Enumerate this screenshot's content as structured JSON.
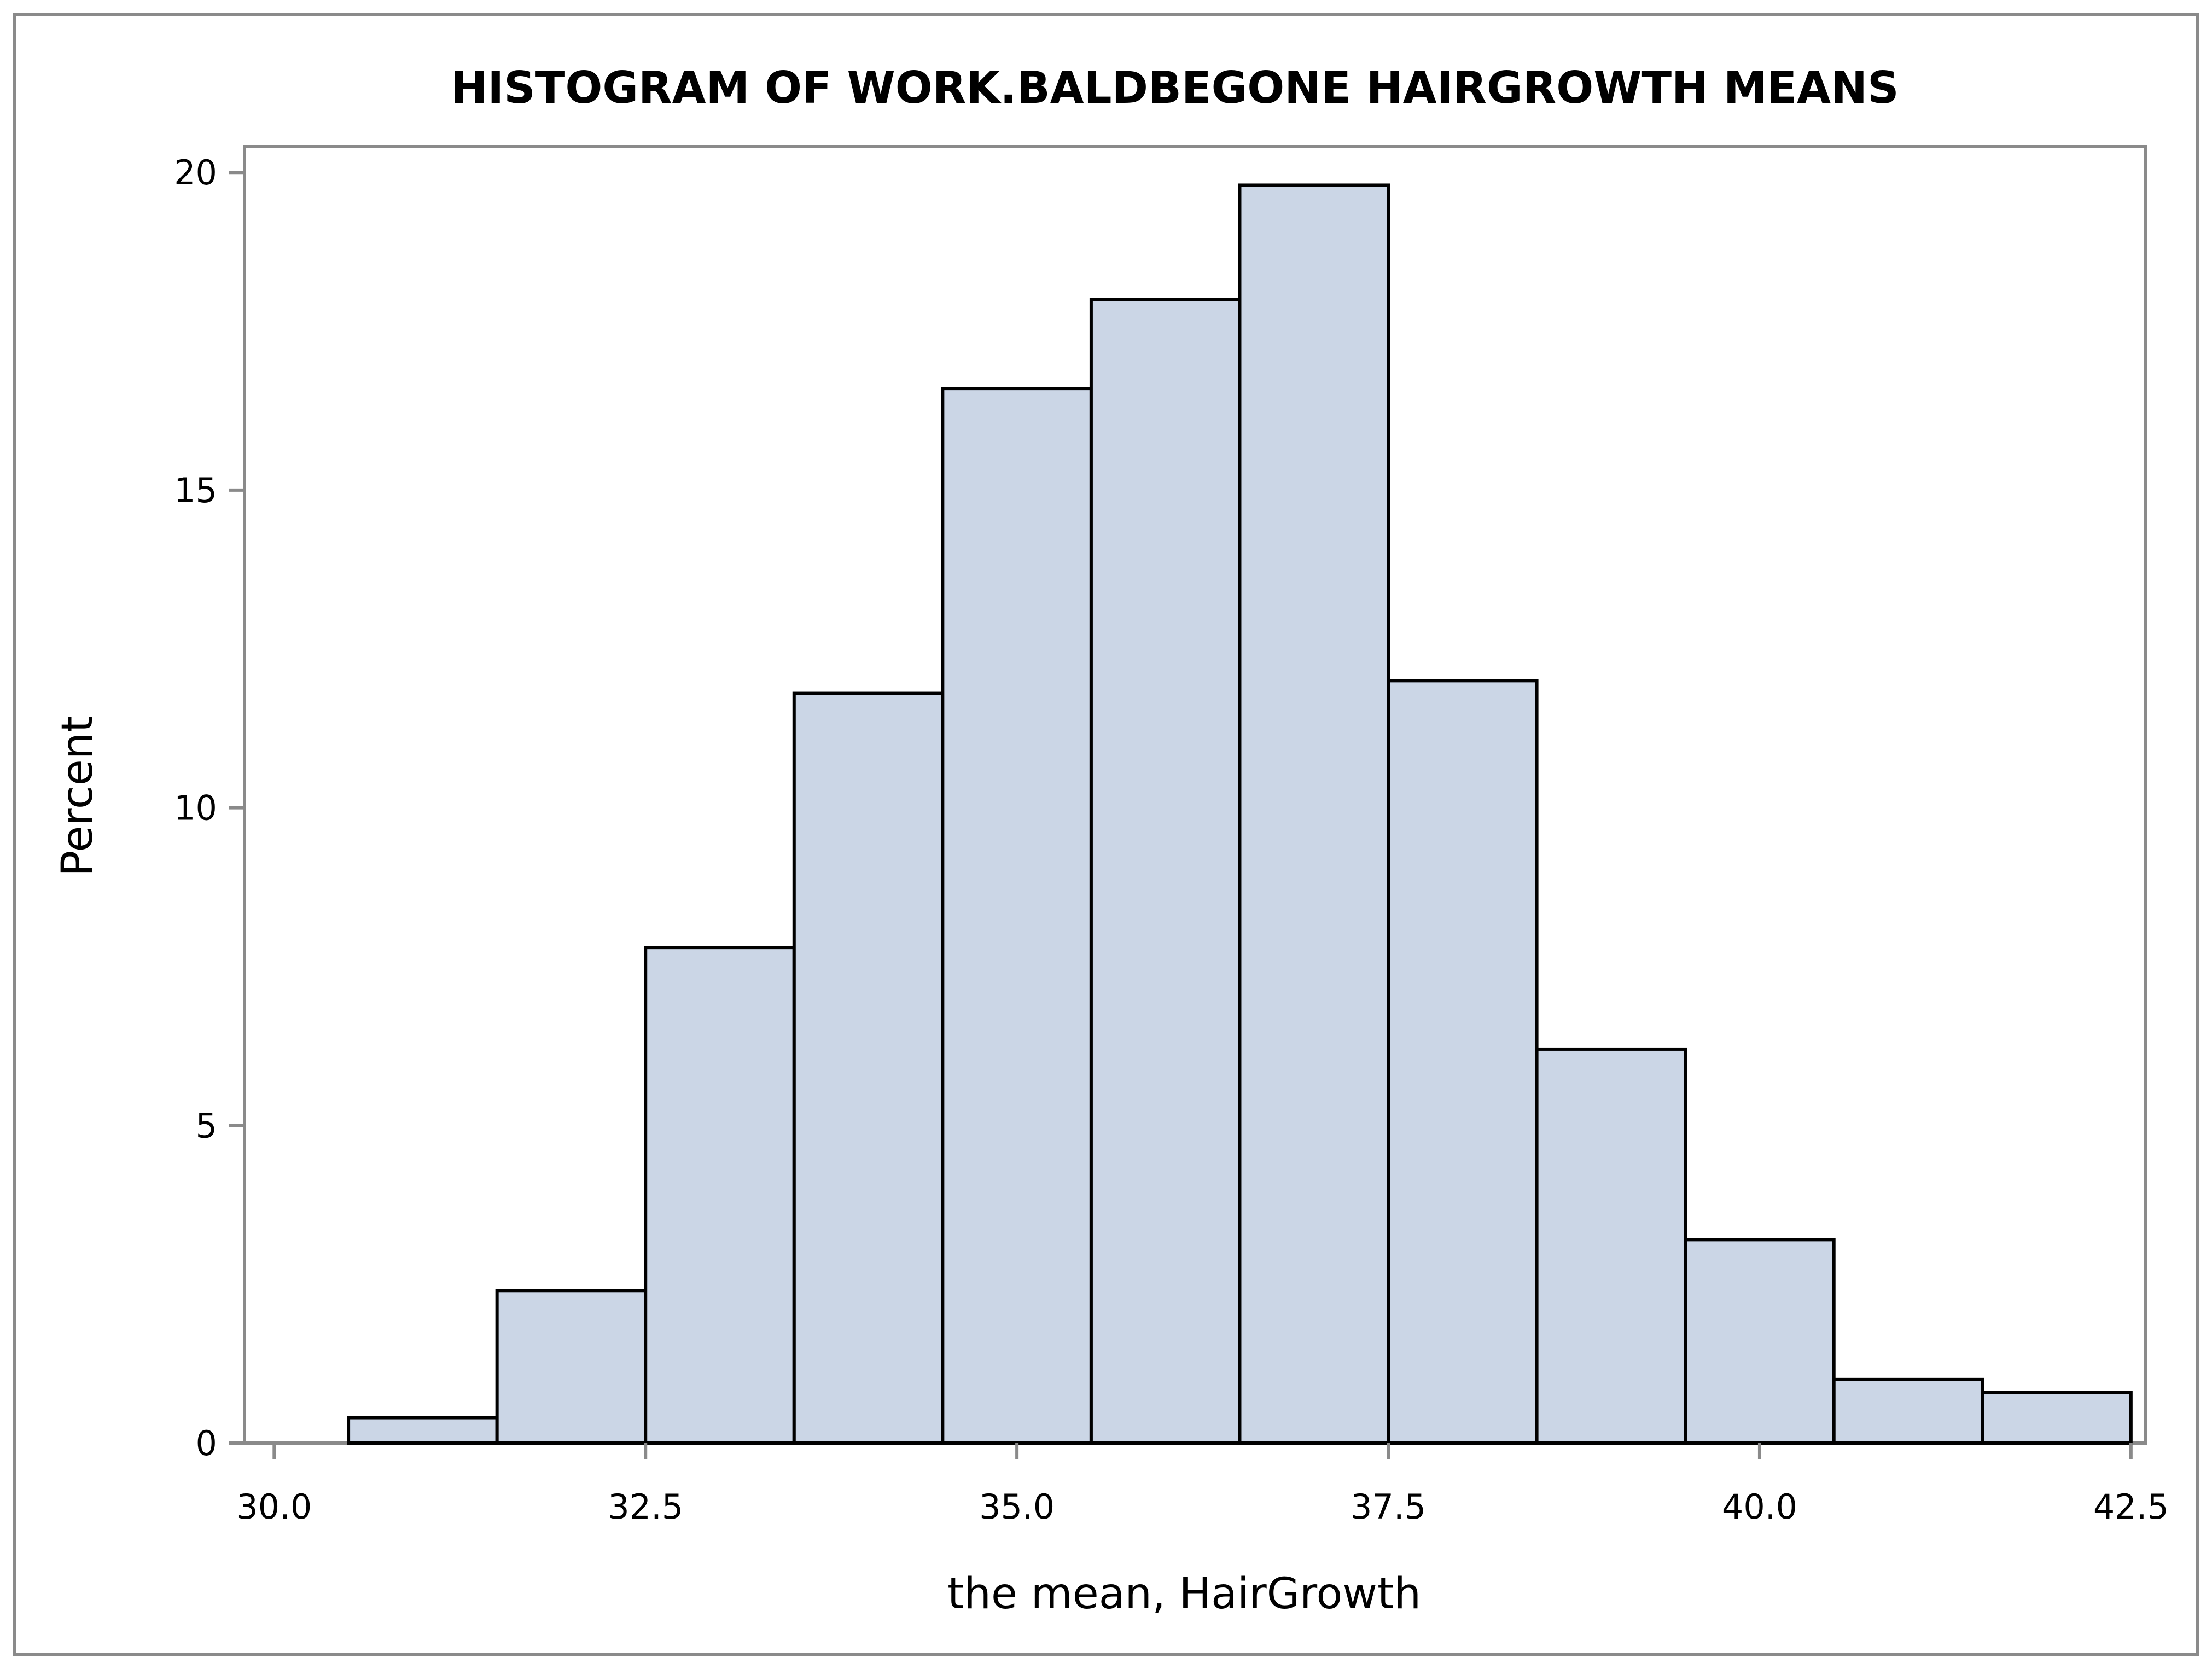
{
  "chart_data": {
    "type": "bar",
    "title": "HISTOGRAM OF WORK.BALDBEGONE HAIRGROWTH MEANS",
    "xlabel": "the mean, HairGrowth",
    "ylabel": "Percent",
    "xlim": [
      29.8,
      42.6
    ],
    "ylim": [
      0,
      20.2
    ],
    "x_ticks": [
      "30.0",
      "32.5",
      "35.0",
      "37.5",
      "40.0",
      "42.5"
    ],
    "x_tick_values": [
      30.0,
      32.5,
      35.0,
      37.5,
      40.0,
      42.5
    ],
    "y_ticks": [
      "0",
      "5",
      "10",
      "15",
      "20"
    ],
    "y_tick_values": [
      0,
      5,
      10,
      15,
      20
    ],
    "bin_width": 1.0,
    "bin_midpoints": [
      31,
      32,
      33,
      34,
      35,
      36,
      37,
      38,
      39,
      40,
      41,
      42
    ],
    "values": [
      0.4,
      2.4,
      7.8,
      11.8,
      16.6,
      18.0,
      19.8,
      12.0,
      6.2,
      3.2,
      1.0,
      0.8
    ],
    "grid": false,
    "legend": "none",
    "colors": {
      "bar_fill": "#cbd6e6",
      "bar_stroke": "#000000",
      "frame": "#8a8a8a",
      "text": "#000000",
      "background": "#ffffff"
    }
  }
}
